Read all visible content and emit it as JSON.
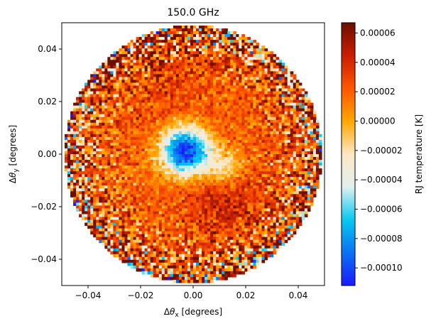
{
  "chart_data": {
    "type": "heatmap",
    "title": "150.0 GHz",
    "xlabel_prefix": "Δ",
    "xlabel_symbol": "θ",
    "xlabel_sub": "x",
    "xlabel_suffix": " [degrees]",
    "ylabel_prefix": "Δ",
    "ylabel_symbol": "θ",
    "ylabel_sub": "y",
    "ylabel_suffix": " [degrees]",
    "xlim": [
      -0.05,
      0.05
    ],
    "ylim": [
      -0.05,
      0.05
    ],
    "xticks": [
      -0.04,
      -0.02,
      0.0,
      0.02,
      0.04
    ],
    "xtick_labels": [
      "−0.04",
      "−0.02",
      "0.00",
      "0.02",
      "0.04"
    ],
    "yticks": [
      -0.04,
      -0.02,
      0.0,
      0.02,
      0.04
    ],
    "ytick_labels": [
      "−0.04",
      "−0.02",
      "0.00",
      "0.02",
      "0.04"
    ],
    "map_radius_deg": 0.049,
    "colorbar": {
      "label": "RJ temperature [K]",
      "vmin": -0.000112,
      "vmax": 6.7e-05,
      "ticks": [
        -0.0001,
        -8e-05,
        -6e-05,
        -4e-05,
        -2e-05,
        0.0,
        2e-05,
        4e-05,
        6e-05
      ],
      "tick_labels": [
        "−0.00010",
        "−0.00008",
        "−0.00006",
        "−0.00004",
        "−0.00002",
        "0.00000",
        "0.00002",
        "0.00004",
        "0.00006"
      ],
      "colors": [
        "#1a1aff",
        "#0a72f2",
        "#08c8f0",
        "#dff0ee",
        "#ffe7c4",
        "#ffa800",
        "#ff5500",
        "#c81e00",
        "#6b0f00"
      ]
    },
    "features": {
      "background_level": 2e-05,
      "cold_core": {
        "x": -0.003,
        "y": 0.001,
        "value": -0.00011
      },
      "cold_extension": {
        "x": 0.012,
        "y": -0.005,
        "value": -5e-05
      },
      "warm_lobe_south": {
        "x": 0.012,
        "y": -0.017,
        "value": 4.5e-05
      },
      "warm_lobe_north": {
        "x": -0.01,
        "y": 0.028,
        "value": 4e-05
      },
      "edge_noise": "high"
    }
  }
}
